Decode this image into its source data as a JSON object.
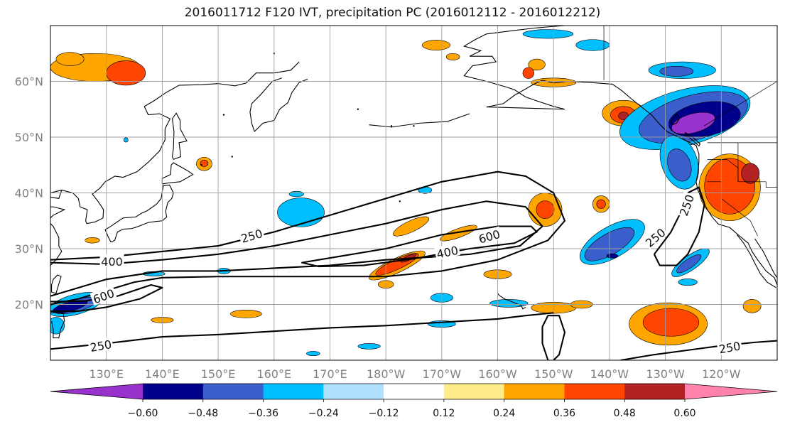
{
  "title": "2016011712 F120 IVT, precipitation PC (2016012112 - 2016012212)",
  "map": {
    "lon_range": [
      120,
      250
    ],
    "lat_range": [
      10,
      70
    ],
    "lon_ticks": [
      {
        "lon": 130,
        "label": "130°E"
      },
      {
        "lon": 140,
        "label": "140°E"
      },
      {
        "lon": 150,
        "label": "150°E"
      },
      {
        "lon": 160,
        "label": "160°E"
      },
      {
        "lon": 170,
        "label": "170°E"
      },
      {
        "lon": 180,
        "label": "180°W"
      },
      {
        "lon": 190,
        "label": "170°W"
      },
      {
        "lon": 200,
        "label": "160°W"
      },
      {
        "lon": 210,
        "label": "150°W"
      },
      {
        "lon": 220,
        "label": "140°W"
      },
      {
        "lon": 230,
        "label": "130°W"
      },
      {
        "lon": 240,
        "label": "120°W"
      }
    ],
    "lat_ticks": [
      {
        "lat": 20,
        "label": "20°N"
      },
      {
        "lat": 30,
        "label": "30°N"
      },
      {
        "lat": 40,
        "label": "40°N"
      },
      {
        "lat": 50,
        "label": "50°N"
      },
      {
        "lat": 60,
        "label": "60°N"
      }
    ],
    "gridlines": true
  },
  "ivt_contours": [
    {
      "level": 250,
      "label": "250",
      "points": [
        [
          120,
          28
        ],
        [
          130,
          28.5
        ],
        [
          140,
          29.5
        ],
        [
          150,
          30.5
        ],
        [
          160,
          33
        ],
        [
          170,
          36
        ],
        [
          180,
          39
        ],
        [
          190,
          42
        ],
        [
          200,
          43.8
        ],
        [
          205,
          43
        ],
        [
          210,
          40
        ],
        [
          212,
          35
        ],
        [
          209,
          31.5
        ],
        [
          200,
          28
        ],
        [
          190,
          26
        ],
        [
          180,
          25
        ],
        [
          170,
          25
        ],
        [
          160,
          25
        ],
        [
          150,
          25
        ],
        [
          140,
          24.8
        ],
        [
          135,
          24
        ],
        [
          130,
          22.5
        ],
        [
          125,
          21
        ],
        [
          120,
          20
        ]
      ]
    },
    {
      "level": 400,
      "label": "400",
      "points": [
        [
          120,
          27.5
        ],
        [
          130,
          27.2
        ],
        [
          140,
          28
        ],
        [
          150,
          29
        ],
        [
          160,
          30.5
        ],
        [
          170,
          32.5
        ],
        [
          180,
          34.5
        ],
        [
          190,
          37
        ],
        [
          198,
          38.5
        ],
        [
          205,
          37.5
        ],
        [
          208,
          34
        ],
        [
          204,
          30.5
        ],
        [
          195,
          29
        ],
        [
          188,
          28.5
        ],
        [
          180,
          28
        ],
        [
          170,
          27
        ],
        [
          160,
          26.5
        ],
        [
          150,
          26
        ],
        [
          140,
          26
        ],
        [
          130,
          24.5
        ],
        [
          125,
          23
        ],
        [
          120,
          21.5
        ]
      ]
    },
    {
      "level": 600,
      "label": "600",
      "points": [
        [
          168,
          28
        ],
        [
          180,
          30
        ],
        [
          190,
          32.5
        ],
        [
          200,
          34
        ],
        [
          206,
          34
        ],
        [
          207,
          33
        ],
        [
          203,
          31
        ],
        [
          195,
          30
        ],
        [
          185,
          28.2
        ],
        [
          176,
          27
        ],
        [
          168,
          26.8
        ],
        [
          165,
          27.5
        ],
        [
          168,
          28
        ]
      ]
    },
    {
      "level": 600,
      "label": "600",
      "points": [
        [
          120,
          20.5
        ],
        [
          126,
          20.6
        ],
        [
          132,
          21.5
        ],
        [
          138,
          23.5
        ],
        [
          140,
          23
        ],
        [
          136,
          21
        ],
        [
          130,
          19.5
        ],
        [
          125,
          18.8
        ],
        [
          120,
          18.8
        ]
      ]
    },
    {
      "level": 250,
      "label": "250",
      "points": [
        [
          120,
          12
        ],
        [
          130,
          13
        ],
        [
          140,
          14.2
        ],
        [
          150,
          14.6
        ],
        [
          160,
          15.2
        ],
        [
          170,
          15.8
        ],
        [
          180,
          16.2
        ],
        [
          190,
          16.8
        ],
        [
          200,
          17.4
        ],
        [
          205,
          18
        ],
        [
          210,
          18.5
        ]
      ]
    },
    {
      "level": 250,
      "label": "250",
      "points": [
        [
          222,
          10
        ],
        [
          228,
          11
        ],
        [
          234,
          11.8
        ],
        [
          240,
          12.6
        ],
        [
          246,
          13.2
        ],
        [
          250,
          13.5
        ]
      ]
    },
    {
      "level": 250,
      "label": "250",
      "points": [
        [
          228,
          29
        ],
        [
          231,
          33
        ],
        [
          233,
          37
        ],
        [
          234,
          40
        ],
        [
          236,
          41
        ],
        [
          237,
          38
        ],
        [
          236,
          33
        ],
        [
          234,
          29
        ],
        [
          232,
          27
        ],
        [
          229,
          27
        ],
        [
          228,
          29
        ]
      ]
    },
    {
      "level": 250,
      "label": "250",
      "points": [
        [
          209,
          10
        ],
        [
          208,
          13
        ],
        [
          208,
          16
        ],
        [
          209,
          18
        ],
        [
          211,
          18
        ],
        [
          212,
          15
        ],
        [
          211,
          11
        ],
        [
          210,
          10
        ]
      ]
    }
  ],
  "contour_labels": [
    {
      "text": "250",
      "lon": 156,
      "lat": 32.3,
      "angle": -16
    },
    {
      "text": "400",
      "lon": 131,
      "lat": 27.7,
      "angle": 0
    },
    {
      "text": "600",
      "lon": 129.5,
      "lat": 21.5,
      "angle": -20
    },
    {
      "text": "400",
      "lon": 191,
      "lat": 29.4,
      "angle": -12
    },
    {
      "text": "600",
      "lon": 198.5,
      "lat": 32.2,
      "angle": -16
    },
    {
      "text": "250",
      "lon": 129,
      "lat": 12.6,
      "angle": -10
    },
    {
      "text": "250",
      "lon": 241.5,
      "lat": 12.3,
      "angle": -10
    },
    {
      "text": "250",
      "lon": 228.2,
      "lat": 32,
      "angle": -40
    },
    {
      "text": "250",
      "lon": 233.8,
      "lat": 37.8,
      "angle": -70
    }
  ],
  "precip_blobs": [
    {
      "value": 0.3,
      "lon": 128,
      "lat": 62.5,
      "rx": 8,
      "ry": 2.5
    },
    {
      "value": 0.4,
      "lon": 133.5,
      "lat": 61.5,
      "rx": 3.5,
      "ry": 2.2
    },
    {
      "value": 0.3,
      "lon": 123.5,
      "lat": 64,
      "rx": 2.5,
      "ry": 1.2
    },
    {
      "value": 0.3,
      "lon": 147.5,
      "lat": 45.2,
      "rx": 1.4,
      "ry": 1.2
    },
    {
      "value": 0.4,
      "lon": 147.5,
      "lat": 45.3,
      "rx": 0.7,
      "ry": 0.6
    },
    {
      "value": 0.3,
      "lon": 207,
      "lat": 63,
      "rx": 1.5,
      "ry": 1
    },
    {
      "value": 0.4,
      "lon": 205.5,
      "lat": 61.5,
      "rx": 1,
      "ry": 1
    },
    {
      "value": 0.3,
      "lon": 210,
      "lat": 59.8,
      "rx": 4,
      "ry": 0.8
    },
    {
      "value": 0.3,
      "lon": 222.5,
      "lat": 54.3,
      "rx": 3.8,
      "ry": 2.3
    },
    {
      "value": 0.42,
      "lon": 222.5,
      "lat": 54,
      "rx": 2.3,
      "ry": 1.5
    },
    {
      "value": 0.52,
      "lon": 222.5,
      "lat": 53.8,
      "rx": 0.9,
      "ry": 0.7
    },
    {
      "value": 0.3,
      "lon": 189,
      "lat": 66.5,
      "rx": 2.5,
      "ry": 0.9
    },
    {
      "value": 0.3,
      "lon": 192,
      "lat": 64.4,
      "rx": 1.2,
      "ry": 0.6
    },
    {
      "value": 0.3,
      "lon": 184.5,
      "lat": 34,
      "rx": 3.5,
      "ry": 1,
      "angle": -25
    },
    {
      "value": 0.3,
      "lon": 193,
      "lat": 32.8,
      "rx": 3.5,
      "ry": 0.8,
      "angle": -20
    },
    {
      "value": 0.3,
      "lon": 182,
      "lat": 27,
      "rx": 5.5,
      "ry": 1.3,
      "angle": -25
    },
    {
      "value": 0.42,
      "lon": 182,
      "lat": 27.2,
      "rx": 4.2,
      "ry": 0.9,
      "angle": -25
    },
    {
      "value": 0.52,
      "lon": 184,
      "lat": 28.3,
      "rx": 1.5,
      "ry": 0.4,
      "angle": -25
    },
    {
      "value": 0.3,
      "lon": 180,
      "lat": 23.6,
      "rx": 1.4,
      "ry": 0.7
    },
    {
      "value": 0.3,
      "lon": 200,
      "lat": 25.4,
      "rx": 2.5,
      "ry": 0.8
    },
    {
      "value": 0.3,
      "lon": 210,
      "lat": 19.4,
      "rx": 4,
      "ry": 1
    },
    {
      "value": 0.3,
      "lon": 215,
      "lat": 20,
      "rx": 2,
      "ry": 0.7
    },
    {
      "value": 0.3,
      "lon": 208.5,
      "lat": 37,
      "rx": 3,
      "ry": 3,
      "angle": -30
    },
    {
      "value": 0.42,
      "lon": 208.5,
      "lat": 37,
      "rx": 1.6,
      "ry": 1.6
    },
    {
      "value": 0.3,
      "lon": 218.5,
      "lat": 38,
      "rx": 1.5,
      "ry": 1.5
    },
    {
      "value": 0.4,
      "lon": 218.5,
      "lat": 38,
      "rx": 0.8,
      "ry": 0.8
    },
    {
      "value": 0.3,
      "lon": 241.5,
      "lat": 41,
      "rx": 5.5,
      "ry": 6
    },
    {
      "value": 0.42,
      "lon": 241.5,
      "lat": 41.2,
      "rx": 4.5,
      "ry": 5
    },
    {
      "value": 0.52,
      "lon": 245.2,
      "lat": 43.5,
      "rx": 1.6,
      "ry": 1.8
    },
    {
      "value": 0.3,
      "lon": 230.5,
      "lat": 16.5,
      "rx": 7,
      "ry": 3.8
    },
    {
      "value": 0.4,
      "lon": 231,
      "lat": 16.8,
      "rx": 5,
      "ry": 2.5
    },
    {
      "value": 0.3,
      "lon": 245.5,
      "lat": 19.7,
      "rx": 1.6,
      "ry": 1.2
    },
    {
      "value": 0.3,
      "lon": 140,
      "lat": 17.2,
      "rx": 2,
      "ry": 0.5
    },
    {
      "value": 0.3,
      "lon": 155,
      "lat": 18.3,
      "rx": 2.8,
      "ry": 0.7
    },
    {
      "value": 0.3,
      "lon": 163,
      "lat": 35.5,
      "rx": 0.6,
      "ry": 0.5
    },
    {
      "value": 0.3,
      "lon": 127.5,
      "lat": 31.5,
      "rx": 1.3,
      "ry": 0.5
    }
  ],
  "neg_blobs": [
    {
      "value": -0.3,
      "lon": 233.5,
      "lat": 53.5,
      "rx": 12,
      "ry": 5,
      "angle": -15
    },
    {
      "value": -0.4,
      "lon": 235,
      "lat": 53.5,
      "rx": 10,
      "ry": 4,
      "angle": -15
    },
    {
      "value": -0.5,
      "lon": 237,
      "lat": 53.2,
      "rx": 6.5,
      "ry": 3,
      "angle": -10
    },
    {
      "value": -0.62,
      "lon": 235,
      "lat": 52.5,
      "rx": 4,
      "ry": 1.7,
      "angle": -15
    },
    {
      "value": -0.3,
      "lon": 232.5,
      "lat": 45.5,
      "rx": 3.2,
      "ry": 5,
      "angle": -20
    },
    {
      "value": -0.4,
      "lon": 232.5,
      "lat": 45,
      "rx": 2,
      "ry": 3,
      "angle": -20
    },
    {
      "value": -0.3,
      "lon": 233,
      "lat": 62,
      "rx": 6,
      "ry": 1.5
    },
    {
      "value": -0.4,
      "lon": 232,
      "lat": 61.8,
      "rx": 3,
      "ry": 0.9
    },
    {
      "value": -0.25,
      "lon": 209,
      "lat": 68.5,
      "rx": 4.5,
      "ry": 0.8
    },
    {
      "value": -0.25,
      "lon": 217,
      "lat": 66.5,
      "rx": 3,
      "ry": 1
    },
    {
      "value": -0.3,
      "lon": 187,
      "lat": 40.5,
      "rx": 1.2,
      "ry": 0.6
    },
    {
      "value": -0.3,
      "lon": 164,
      "lat": 39.8,
      "rx": 1.3,
      "ry": 0.5
    },
    {
      "value": -0.3,
      "lon": 164.8,
      "lat": 36.5,
      "rx": 4.2,
      "ry": 2.6
    },
    {
      "value": -0.3,
      "lon": 220.5,
      "lat": 31.2,
      "rx": 6.5,
      "ry": 2.8,
      "angle": -30
    },
    {
      "value": -0.42,
      "lon": 220,
      "lat": 30.8,
      "rx": 5,
      "ry": 1.9,
      "angle": -30
    },
    {
      "value": -0.52,
      "lon": 220.5,
      "lat": 28.7,
      "rx": 1,
      "ry": 0.4
    },
    {
      "value": -0.3,
      "lon": 234.5,
      "lat": 27.5,
      "rx": 4,
      "ry": 1.3,
      "angle": -35
    },
    {
      "value": -0.42,
      "lon": 234.2,
      "lat": 27.3,
      "rx": 2.6,
      "ry": 0.8,
      "angle": -35
    },
    {
      "value": -0.3,
      "lon": 124.5,
      "lat": 20,
      "rx": 5,
      "ry": 1.8,
      "angle": -15
    },
    {
      "value": -0.42,
      "lon": 124.5,
      "lat": 19.8,
      "rx": 4,
      "ry": 1.1,
      "angle": -15
    },
    {
      "value": -0.52,
      "lon": 123.5,
      "lat": 19.6,
      "rx": 3.2,
      "ry": 0.8,
      "angle": -15
    },
    {
      "value": -0.3,
      "lon": 121,
      "lat": 16.2,
      "rx": 1.5,
      "ry": 1.5
    },
    {
      "value": -0.25,
      "lon": 190,
      "lat": 16.5,
      "rx": 2.5,
      "ry": 0.6
    },
    {
      "value": -0.25,
      "lon": 177,
      "lat": 12.5,
      "rx": 2,
      "ry": 0.5
    },
    {
      "value": -0.25,
      "lon": 190,
      "lat": 21.2,
      "rx": 2,
      "ry": 0.8
    },
    {
      "value": -0.3,
      "lon": 202,
      "lat": 20.2,
      "rx": 3.4,
      "ry": 0.7
    },
    {
      "value": -0.25,
      "lon": 234,
      "lat": 24,
      "rx": 1.7,
      "ry": 0.6
    },
    {
      "value": -0.25,
      "lon": 167,
      "lat": 11.2,
      "rx": 1.2,
      "ry": 0.4
    },
    {
      "value": -0.25,
      "lon": 138.5,
      "lat": 25.5,
      "rx": 2,
      "ry": 0.4
    },
    {
      "value": -0.25,
      "lon": 133.5,
      "lat": 49.5,
      "rx": 0.4,
      "ry": 0.4
    },
    {
      "value": -0.25,
      "lon": 151,
      "lat": 26,
      "rx": 1.2,
      "ry": 0.5
    }
  ],
  "colorbar": {
    "colors": [
      "#9932cc",
      "#00008b",
      "#3a5fcd",
      "#00bfff",
      "#b0e2ff",
      "#ffffff",
      "#ffec8b",
      "#ffa500",
      "#ff4500",
      "#b22222",
      "#ff82ab"
    ],
    "labels": [
      "−0.60",
      "−0.48",
      "−0.36",
      "−0.24",
      "−0.12",
      "0.12",
      "0.24",
      "0.36",
      "0.48",
      "0.60"
    ],
    "boundaries": [
      -0.6,
      -0.48,
      -0.36,
      -0.24,
      -0.12,
      0.12,
      0.24,
      0.36,
      0.48,
      0.6
    ]
  }
}
